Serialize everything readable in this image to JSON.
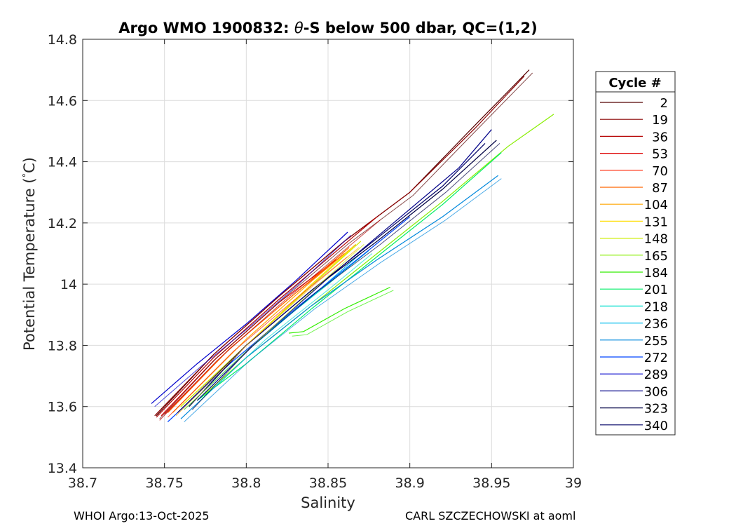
{
  "chart_data": {
    "type": "line",
    "title_main": "Argo WMO 1900832: ",
    "title_theta": "θ",
    "title_rest": "-S below 500 dbar,  QC=(1,2)",
    "xlabel": "Salinity",
    "ylabel_pre": "Potential Temperature (",
    "ylabel_deg": "°",
    "ylabel_post": "C)",
    "xlim": [
      38.7,
      39.0
    ],
    "ylim": [
      13.4,
      14.8
    ],
    "x_ticks": [
      "38.7",
      "38.75",
      "38.8",
      "38.85",
      "38.9",
      "38.95",
      "39"
    ],
    "y_ticks": [
      "13.4",
      "13.6",
      "13.8",
      "14",
      "14.2",
      "14.4",
      "14.6",
      "14.8"
    ],
    "grid": true,
    "legend_title": "Cycle #",
    "legend_position": "right-outside",
    "series": [
      {
        "name": "2",
        "color": "#550000",
        "points": [
          [
            38.745,
            13.57
          ],
          [
            38.78,
            13.77
          ],
          [
            38.82,
            13.96
          ],
          [
            38.86,
            14.14
          ],
          [
            38.9,
            14.3
          ],
          [
            38.94,
            14.52
          ],
          [
            38.973,
            14.7
          ]
        ]
      },
      {
        "name": "19",
        "color": "#8a0000",
        "points": [
          [
            38.744,
            13.57
          ],
          [
            38.78,
            13.77
          ],
          [
            38.82,
            13.96
          ],
          [
            38.86,
            14.14
          ],
          [
            38.9,
            14.3
          ],
          [
            38.94,
            14.51
          ],
          [
            38.97,
            14.68
          ]
        ]
      },
      {
        "name": "36",
        "color": "#b50000",
        "points": [
          [
            38.745,
            13.565
          ],
          [
            38.78,
            13.76
          ],
          [
            38.82,
            13.95
          ],
          [
            38.86,
            14.13
          ],
          [
            38.88,
            14.22
          ]
        ]
      },
      {
        "name": "53",
        "color": "#dd0000",
        "points": [
          [
            38.748,
            13.57
          ],
          [
            38.78,
            13.75
          ],
          [
            38.82,
            13.94
          ],
          [
            38.855,
            14.08
          ]
        ]
      },
      {
        "name": "70",
        "color": "#ff2200",
        "points": [
          [
            38.75,
            13.575
          ],
          [
            38.79,
            13.79
          ],
          [
            38.83,
            13.97
          ],
          [
            38.86,
            14.1
          ]
        ]
      },
      {
        "name": "87",
        "color": "#ff6600",
        "points": [
          [
            38.752,
            13.58
          ],
          [
            38.79,
            13.79
          ],
          [
            38.83,
            13.97
          ],
          [
            38.863,
            14.12
          ]
        ]
      },
      {
        "name": "104",
        "color": "#ffa500",
        "points": [
          [
            38.755,
            13.58
          ],
          [
            38.8,
            13.82
          ],
          [
            38.84,
            14.01
          ],
          [
            38.867,
            14.13
          ]
        ]
      },
      {
        "name": "131",
        "color": "#ffdd00",
        "points": [
          [
            38.76,
            13.6
          ],
          [
            38.8,
            13.8
          ],
          [
            38.84,
            14.0
          ],
          [
            38.865,
            14.12
          ]
        ]
      },
      {
        "name": "148",
        "color": "#ccee00",
        "points": [
          [
            38.76,
            13.6
          ],
          [
            38.8,
            13.8
          ],
          [
            38.845,
            14.02
          ],
          [
            38.87,
            14.14
          ]
        ]
      },
      {
        "name": "165",
        "color": "#88ee00",
        "points": [
          [
            38.77,
            13.62
          ],
          [
            38.8,
            13.76
          ],
          [
            38.84,
            13.93
          ],
          [
            38.88,
            14.1
          ],
          [
            38.92,
            14.27
          ],
          [
            38.96,
            14.45
          ],
          [
            38.988,
            14.555
          ]
        ]
      },
      {
        "name": "184",
        "color": "#33ee00",
        "points": [
          [
            38.826,
            13.84
          ],
          [
            38.835,
            13.845
          ],
          [
            38.86,
            13.92
          ],
          [
            38.888,
            13.99
          ]
        ]
      },
      {
        "name": "201",
        "color": "#00ee66",
        "points": [
          [
            38.77,
            13.62
          ],
          [
            38.8,
            13.74
          ],
          [
            38.84,
            13.92
          ],
          [
            38.88,
            14.09
          ],
          [
            38.92,
            14.26
          ],
          [
            38.956,
            14.43
          ]
        ]
      },
      {
        "name": "218",
        "color": "#00ddcc",
        "points": [
          [
            38.77,
            13.63
          ],
          [
            38.81,
            13.83
          ],
          [
            38.85,
            14.0
          ],
          [
            38.875,
            14.11
          ]
        ]
      },
      {
        "name": "236",
        "color": "#00bbee",
        "points": [
          [
            38.762,
            13.59
          ],
          [
            38.8,
            13.78
          ],
          [
            38.84,
            13.96
          ],
          [
            38.87,
            14.1
          ]
        ]
      },
      {
        "name": "255",
        "color": "#0088dd",
        "points": [
          [
            38.76,
            13.56
          ],
          [
            38.8,
            13.76
          ],
          [
            38.84,
            13.93
          ],
          [
            38.88,
            14.08
          ],
          [
            38.92,
            14.22
          ],
          [
            38.954,
            14.355
          ]
        ]
      },
      {
        "name": "272",
        "color": "#0044ff",
        "points": [
          [
            38.752,
            13.55
          ],
          [
            38.79,
            13.74
          ],
          [
            38.83,
            13.92
          ],
          [
            38.87,
            14.09
          ],
          [
            38.9,
            14.22
          ]
        ]
      },
      {
        "name": "289",
        "color": "#0000cc",
        "points": [
          [
            38.742,
            13.61
          ],
          [
            38.77,
            13.74
          ],
          [
            38.8,
            13.87
          ],
          [
            38.83,
            14.01
          ],
          [
            38.862,
            14.17
          ]
        ]
      },
      {
        "name": "306",
        "color": "#000088",
        "points": [
          [
            38.77,
            13.62
          ],
          [
            38.81,
            13.83
          ],
          [
            38.85,
            14.02
          ],
          [
            38.89,
            14.2
          ],
          [
            38.93,
            14.38
          ],
          [
            38.95,
            14.505
          ]
        ]
      },
      {
        "name": "323",
        "color": "#000044",
        "points": [
          [
            38.765,
            13.6
          ],
          [
            38.8,
            13.8
          ],
          [
            38.84,
            13.98
          ],
          [
            38.88,
            14.14
          ],
          [
            38.92,
            14.31
          ],
          [
            38.953,
            14.47
          ]
        ]
      },
      {
        "name": "340",
        "color": "#000066",
        "points": [
          [
            38.758,
            13.58
          ],
          [
            38.8,
            13.8
          ],
          [
            38.84,
            13.98
          ],
          [
            38.88,
            14.15
          ],
          [
            38.92,
            14.32
          ],
          [
            38.946,
            14.46
          ]
        ]
      }
    ]
  },
  "footer": {
    "left": "WHOI Argo:13-Oct-2025",
    "right": "CARL SZCZECHOWSKI at aoml"
  }
}
